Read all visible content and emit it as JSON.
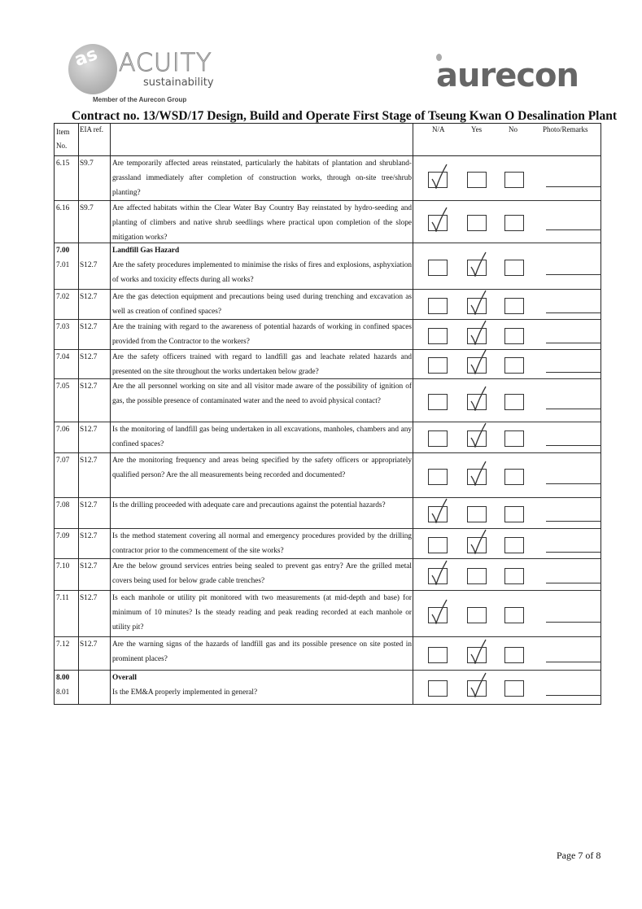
{
  "logos": {
    "acuity_name": "ACUITY",
    "acuity_tagline": "sustainability",
    "acuity_member": "Member of the Aurecon Group",
    "acuity_mark": "as",
    "aurecon": "aurecon"
  },
  "title": "Contract no.  13/WSD/17 Design, Build and Operate First Stage of Tseung Kwan O Desalination Plant",
  "headers": {
    "item": "Item No.",
    "eia": "EIA ref.",
    "na": "N/A",
    "yes": "Yes",
    "no": "No",
    "remarks": "Photo/Remarks"
  },
  "rows": [
    {
      "item": "6.15",
      "ref": "S9.7",
      "text": "Are temporarily affected areas reinstated, particularly the habitats of plantation and shrubland-grassland immediately after completion of construction works, through on-site tree/shrub planting?",
      "answer": "N/A"
    },
    {
      "item": "6.16",
      "ref": "S9.7",
      "text": "Are affected habitats within the Clear Water Bay Country Bay reinstated by hydro-seeding and planting of climbers and native shrub seedlings where practical upon completion of the slope mitigation works?",
      "answer": "N/A"
    },
    {
      "section_no": "7.00",
      "section_title": "Landfill Gas Hazard",
      "item": "7.01",
      "ref": "S12.7",
      "text": "Are the safety procedures implemented to minimise the risks of fires and explosions, asphyxiation of works and toxicity effects during all works?",
      "answer": "Yes"
    },
    {
      "item": "7.02",
      "ref": "S12.7",
      "text": "Are the gas detection equipment and precautions being used during trenching and excavation as well as creation of confined spaces?",
      "answer": "Yes"
    },
    {
      "item": "7.03",
      "ref": "S12.7",
      "text": "Are the training with regard to the awareness of potential hazards of working in confined spaces provided from the Contractor to the workers?",
      "answer": "Yes"
    },
    {
      "item": "7.04",
      "ref": "S12.7",
      "text": "Are the safety officers trained with regard to landfill gas and leachate related hazards and presented on the site throughout the works undertaken below grade?",
      "answer": "Yes"
    },
    {
      "item": "7.05",
      "ref": "S12.7",
      "text": "Are the all personnel working on site and all visitor made aware of the possibility of ignition of gas, the possible presence of contaminated water and the need to avoid physical contact?",
      "answer": "Yes"
    },
    {
      "item": "7.06",
      "ref": "S12.7",
      "text": "Is the monitoring of landfill gas being undertaken in all excavations, manholes, chambers and any confined spaces?",
      "answer": "Yes"
    },
    {
      "item": "7.07",
      "ref": "S12.7",
      "text": "Are the monitoring frequency and areas being specified by the safety officers or appropriately qualified person? Are the all measurements being recorded and documented?",
      "answer": "Yes"
    },
    {
      "item": "7.08",
      "ref": "S12.7",
      "text": "Is the drilling proceeded with adequate care and precautions against the potential hazards?",
      "answer": "N/A"
    },
    {
      "item": "7.09",
      "ref": "S12.7",
      "text": "Is the method statement covering all normal and emergency procedures provided by the drilling contractor prior to the commencement of the site works?",
      "answer": "Yes"
    },
    {
      "item": "7.10",
      "ref": "S12.7",
      "text": "Are the below ground services entries being sealed to prevent gas entry? Are the grilled metal covers being used for below grade cable trenches?",
      "answer": "N/A"
    },
    {
      "item": "7.11",
      "ref": "S12.7",
      "text": "Is each manhole or utility pit monitored with two measurements (at mid-depth and base) for minimum of 10 minutes? Is the steady reading and peak reading recorded at each manhole or utility pit?",
      "answer": "N/A"
    },
    {
      "item": "7.12",
      "ref": "S12.7",
      "text": "Are the warning signs of the hazards of landfill gas and its possible presence on site posted in prominent places?",
      "answer": "Yes"
    },
    {
      "section_no": "8.00",
      "section_title": "Overall",
      "item": "8.01",
      "ref": "",
      "text": "Is the EM&A properly implemented in general?",
      "answer": "Yes"
    }
  ],
  "footer": "Page 7 of 8"
}
